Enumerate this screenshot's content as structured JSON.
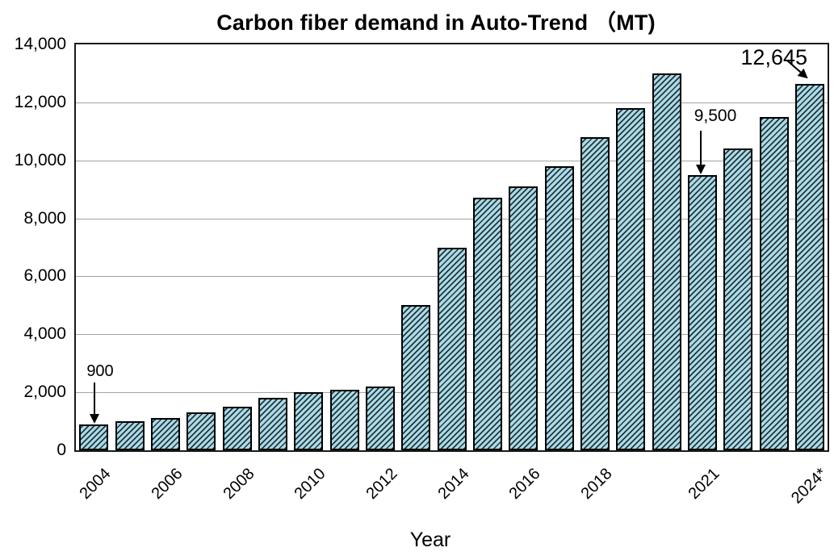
{
  "chart_data": {
    "type": "bar",
    "title": "Carbon fiber demand in Auto-Trend （MT)",
    "xlabel": "Year",
    "ylabel": "",
    "ylim": [
      0,
      14000
    ],
    "grid": "horizontal",
    "legend": "none",
    "yticks": [
      0,
      2000,
      4000,
      6000,
      8000,
      10000,
      12000,
      14000
    ],
    "ytick_labels": [
      "0",
      "2,000",
      "4,000",
      "6,000",
      "8,000",
      "10,000",
      "12,000",
      "14,000"
    ],
    "categories": [
      "2004",
      "2005",
      "2006",
      "2007",
      "2008",
      "2009",
      "2010",
      "2011",
      "2012",
      "2013",
      "2014",
      "2015",
      "2016",
      "2017",
      "2018",
      "2019",
      "2020",
      "2021",
      "2022",
      "2023",
      "2024*"
    ],
    "values": [
      900,
      1000,
      1100,
      1300,
      1500,
      1800,
      2000,
      2100,
      2200,
      5000,
      7000,
      8700,
      9100,
      9800,
      10800,
      11800,
      13000,
      9500,
      10400,
      11500,
      12645
    ],
    "xticks_shown": [
      {
        "index": 0,
        "label": "2004"
      },
      {
        "index": 2,
        "label": "2006"
      },
      {
        "index": 4,
        "label": "2008"
      },
      {
        "index": 6,
        "label": "2010"
      },
      {
        "index": 8,
        "label": "2012"
      },
      {
        "index": 10,
        "label": "2014"
      },
      {
        "index": 12,
        "label": "2016"
      },
      {
        "index": 14,
        "label": "2018"
      },
      {
        "index": 17,
        "label": "2021"
      },
      {
        "index": 20,
        "label": "2024*"
      }
    ],
    "annotations": [
      {
        "target": "2004",
        "text": "900"
      },
      {
        "target": "2021",
        "text": "9,500"
      },
      {
        "target": "2024*",
        "text": "12,645"
      }
    ],
    "bar_style": {
      "fill": "#a9dbe7",
      "hatch": "diagonal-forward",
      "hatch_color": "#25333a",
      "border": "#000000",
      "gridline_color": "#a3a3a3",
      "axis_color": "#1a1a1a"
    }
  }
}
